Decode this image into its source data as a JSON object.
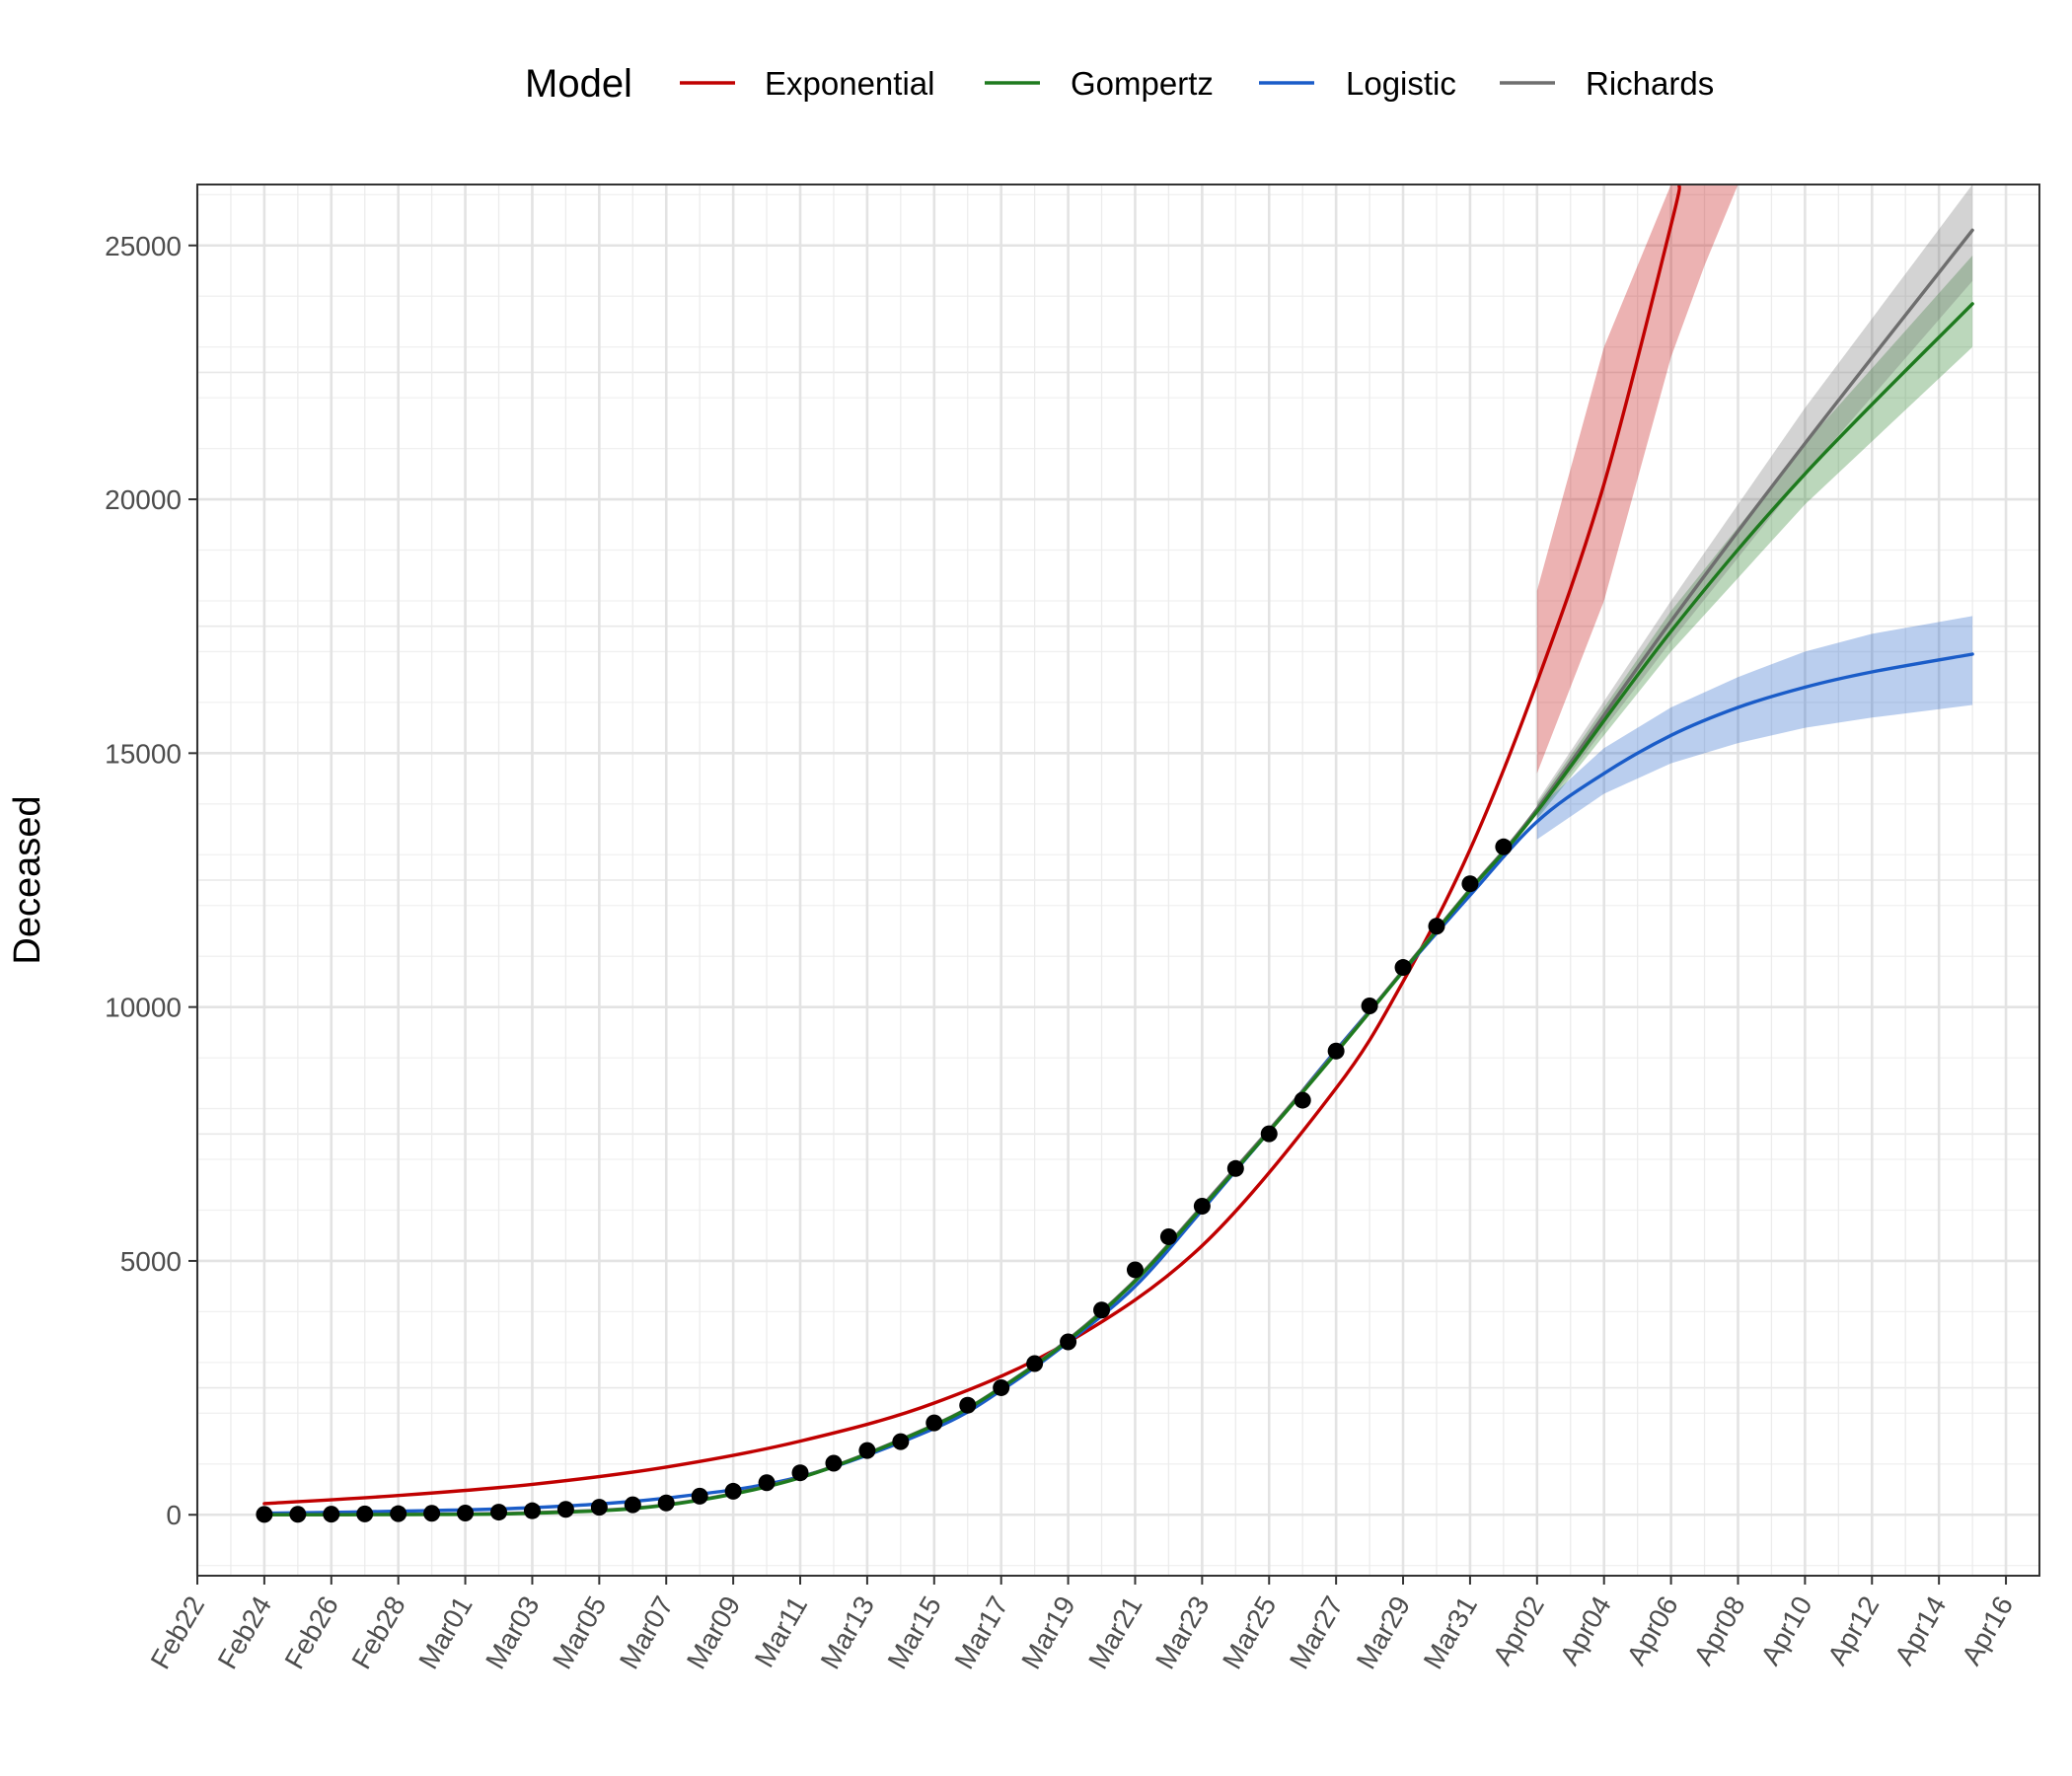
{
  "chart_data": {
    "type": "line",
    "ylabel": "Deceased",
    "xlabel": "",
    "legend": {
      "title": "Model",
      "placement": "top"
    },
    "grid": true,
    "x_range": [
      "2020-02-22",
      "2020-04-17"
    ],
    "ylim": [
      -1200,
      26200
    ],
    "y_ticks": [
      0,
      5000,
      10000,
      15000,
      20000,
      25000
    ],
    "x_ticks": [
      {
        "date": "2020-02-22",
        "label": "Feb22"
      },
      {
        "date": "2020-02-24",
        "label": "Feb24"
      },
      {
        "date": "2020-02-26",
        "label": "Feb26"
      },
      {
        "date": "2020-02-28",
        "label": "Feb28"
      },
      {
        "date": "2020-03-01",
        "label": "Mar01"
      },
      {
        "date": "2020-03-03",
        "label": "Mar03"
      },
      {
        "date": "2020-03-05",
        "label": "Mar05"
      },
      {
        "date": "2020-03-07",
        "label": "Mar07"
      },
      {
        "date": "2020-03-09",
        "label": "Mar09"
      },
      {
        "date": "2020-03-11",
        "label": "Mar11"
      },
      {
        "date": "2020-03-13",
        "label": "Mar13"
      },
      {
        "date": "2020-03-15",
        "label": "Mar15"
      },
      {
        "date": "2020-03-17",
        "label": "Mar17"
      },
      {
        "date": "2020-03-19",
        "label": "Mar19"
      },
      {
        "date": "2020-03-21",
        "label": "Mar21"
      },
      {
        "date": "2020-03-23",
        "label": "Mar23"
      },
      {
        "date": "2020-03-25",
        "label": "Mar25"
      },
      {
        "date": "2020-03-27",
        "label": "Mar27"
      },
      {
        "date": "2020-03-29",
        "label": "Mar29"
      },
      {
        "date": "2020-03-31",
        "label": "Mar31"
      },
      {
        "date": "2020-04-02",
        "label": "Apr02"
      },
      {
        "date": "2020-04-04",
        "label": "Apr04"
      },
      {
        "date": "2020-04-06",
        "label": "Apr06"
      },
      {
        "date": "2020-04-08",
        "label": "Apr08"
      },
      {
        "date": "2020-04-10",
        "label": "Apr10"
      },
      {
        "date": "2020-04-12",
        "label": "Apr12"
      },
      {
        "date": "2020-04-14",
        "label": "Apr14"
      },
      {
        "date": "2020-04-16",
        "label": "Apr16"
      }
    ],
    "observed": {
      "x": [
        "2020-02-24",
        "2020-02-25",
        "2020-02-26",
        "2020-02-27",
        "2020-02-28",
        "2020-02-29",
        "2020-03-01",
        "2020-03-02",
        "2020-03-03",
        "2020-03-04",
        "2020-03-05",
        "2020-03-06",
        "2020-03-07",
        "2020-03-08",
        "2020-03-09",
        "2020-03-10",
        "2020-03-11",
        "2020-03-12",
        "2020-03-13",
        "2020-03-14",
        "2020-03-15",
        "2020-03-16",
        "2020-03-17",
        "2020-03-18",
        "2020-03-19",
        "2020-03-20",
        "2020-03-21",
        "2020-03-22",
        "2020-03-23",
        "2020-03-24",
        "2020-03-25",
        "2020-03-26",
        "2020-03-27",
        "2020-03-28",
        "2020-03-29",
        "2020-03-30",
        "2020-03-31",
        "2020-04-01"
      ],
      "y": [
        7,
        10,
        12,
        17,
        21,
        29,
        34,
        52,
        79,
        107,
        148,
        197,
        233,
        366,
        463,
        631,
        827,
        1016,
        1266,
        1441,
        1809,
        2158,
        2503,
        2978,
        3405,
        4032,
        4825,
        5476,
        6077,
        6820,
        7503,
        8165,
        9134,
        10023,
        10779,
        11591,
        12428,
        13155
      ]
    },
    "series": [
      {
        "name": "Exponential",
        "color": "#c00000",
        "x": [
          "2020-02-24",
          "2020-02-28",
          "2020-03-03",
          "2020-03-07",
          "2020-03-11",
          "2020-03-15",
          "2020-03-19",
          "2020-03-23",
          "2020-03-27",
          "2020-03-29",
          "2020-03-31",
          "2020-04-02",
          "2020-04-04",
          "2020-04-06",
          "2020-04-06T06"
        ],
        "y": [
          220,
          380,
          600,
          940,
          1450,
          2200,
          3400,
          5300,
          8400,
          10500,
          13100,
          16400,
          20300,
          25400,
          26200
        ],
        "band": {
          "x": [
            "2020-04-02",
            "2020-04-04",
            "2020-04-06",
            "2020-04-07",
            "2020-04-08"
          ],
          "lower": [
            14600,
            18000,
            22800,
            24600,
            26200
          ],
          "upper": [
            18200,
            23000,
            26200,
            26200,
            26200
          ]
        }
      },
      {
        "name": "Gompertz",
        "color": "#1e7a1e",
        "x": [
          "2020-02-24",
          "2020-02-28",
          "2020-03-03",
          "2020-03-07",
          "2020-03-11",
          "2020-03-15",
          "2020-03-17",
          "2020-03-19",
          "2020-03-21",
          "2020-03-23",
          "2020-03-25",
          "2020-03-27",
          "2020-03-29",
          "2020-03-31",
          "2020-04-02",
          "2020-04-06",
          "2020-04-10",
          "2020-04-15"
        ],
        "y": [
          1,
          5,
          30,
          190,
          730,
          1760,
          2500,
          3430,
          4600,
          6050,
          7550,
          9100,
          10700,
          12300,
          13850,
          17400,
          20500,
          23850
        ],
        "band": {
          "x": [
            "2020-04-02",
            "2020-04-06",
            "2020-04-10",
            "2020-04-15"
          ],
          "lower": [
            13700,
            17000,
            19900,
            23000
          ],
          "upper": [
            14000,
            17800,
            21100,
            24800
          ]
        }
      },
      {
        "name": "Logistic",
        "color": "#1a5cc8",
        "x": [
          "2020-02-24",
          "2020-02-28",
          "2020-03-03",
          "2020-03-07",
          "2020-03-11",
          "2020-03-15",
          "2020-03-17",
          "2020-03-19",
          "2020-03-21",
          "2020-03-23",
          "2020-03-25",
          "2020-03-27",
          "2020-03-29",
          "2020-03-31",
          "2020-04-02",
          "2020-04-04",
          "2020-04-06",
          "2020-04-08",
          "2020-04-10",
          "2020-04-12",
          "2020-04-15"
        ],
        "y": [
          30,
          70,
          140,
          330,
          750,
          1700,
          2450,
          3400,
          4500,
          6000,
          7550,
          9150,
          10700,
          12200,
          13650,
          14600,
          15350,
          15900,
          16300,
          16600,
          16950
        ],
        "band": {
          "x": [
            "2020-04-02",
            "2020-04-04",
            "2020-04-06",
            "2020-04-08",
            "2020-04-10",
            "2020-04-12",
            "2020-04-15"
          ],
          "lower": [
            13300,
            14200,
            14800,
            15200,
            15500,
            15700,
            15950
          ],
          "upper": [
            13900,
            15100,
            15900,
            16500,
            17000,
            17350,
            17700
          ]
        }
      },
      {
        "name": "Richards",
        "color": "#6e6e6e",
        "x": [
          "2020-02-24",
          "2020-02-28",
          "2020-03-03",
          "2020-03-07",
          "2020-03-11",
          "2020-03-15",
          "2020-03-17",
          "2020-03-19",
          "2020-03-21",
          "2020-03-23",
          "2020-03-25",
          "2020-03-27",
          "2020-03-29",
          "2020-03-31",
          "2020-04-02",
          "2020-04-06",
          "2020-04-10",
          "2020-04-15"
        ],
        "y": [
          2,
          8,
          40,
          200,
          740,
          1770,
          2510,
          3450,
          4620,
          6080,
          7580,
          9120,
          10720,
          12320,
          13900,
          17600,
          21100,
          25300
        ],
        "band": {
          "x": [
            "2020-04-02",
            "2020-04-06",
            "2020-04-10",
            "2020-04-15"
          ],
          "lower": [
            13750,
            17200,
            20500,
            24300
          ],
          "upper": [
            14050,
            18000,
            21800,
            26200
          ]
        }
      }
    ]
  }
}
